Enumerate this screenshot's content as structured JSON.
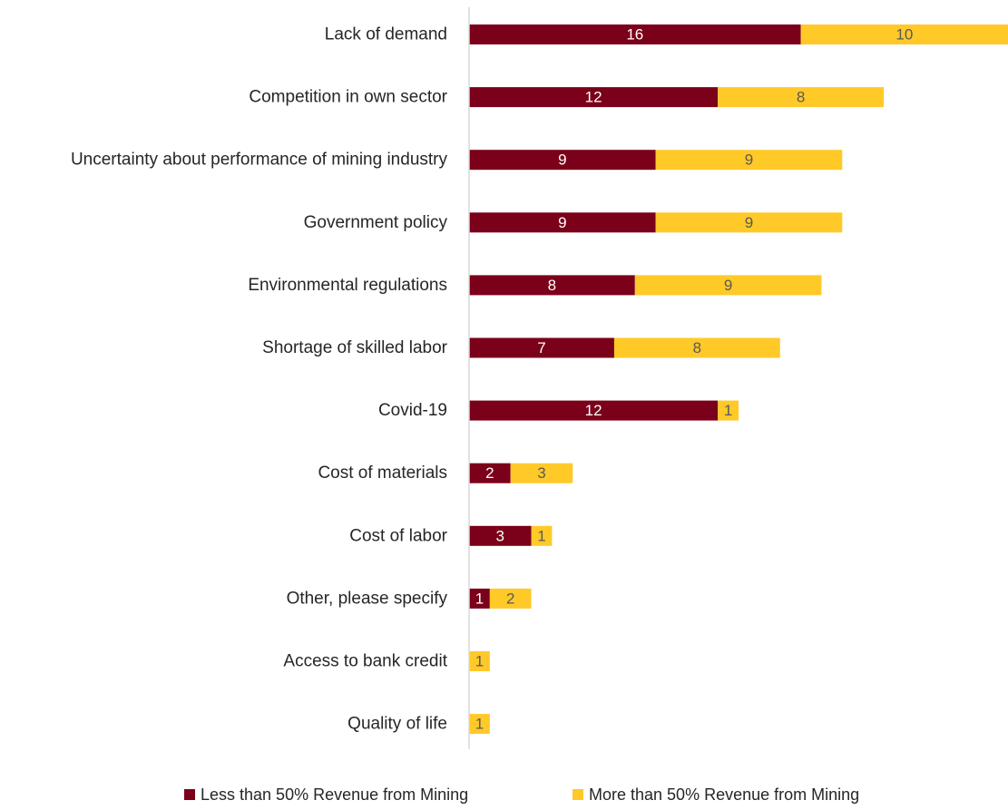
{
  "chart_data": {
    "type": "bar",
    "orientation": "horizontal",
    "stacked": true,
    "categories": [
      "Lack of demand",
      "Competition in own sector",
      "Uncertainty about performance of mining industry",
      "Government policy",
      "Environmental regulations",
      "Shortage of skilled labor",
      "Covid-19",
      "Cost of materials",
      "Cost of labor",
      "Other, please specify",
      "Access to bank credit",
      "Quality of life"
    ],
    "series": [
      {
        "name": "Less than 50% Revenue from Mining",
        "color": "#7b0019",
        "label_color": "#ffffff",
        "values": [
          16,
          12,
          9,
          9,
          8,
          7,
          12,
          2,
          3,
          1,
          0,
          0
        ]
      },
      {
        "name": "More than 50% Revenue from Mining",
        "color": "#ffc928",
        "label_color": "#595959",
        "values": [
          10,
          8,
          9,
          9,
          9,
          8,
          1,
          3,
          1,
          2,
          1,
          1
        ]
      }
    ],
    "xlim": [
      0,
      26
    ],
    "grid": false,
    "axis_line_color": "#d9d9d9",
    "legend_position": "bottom"
  }
}
